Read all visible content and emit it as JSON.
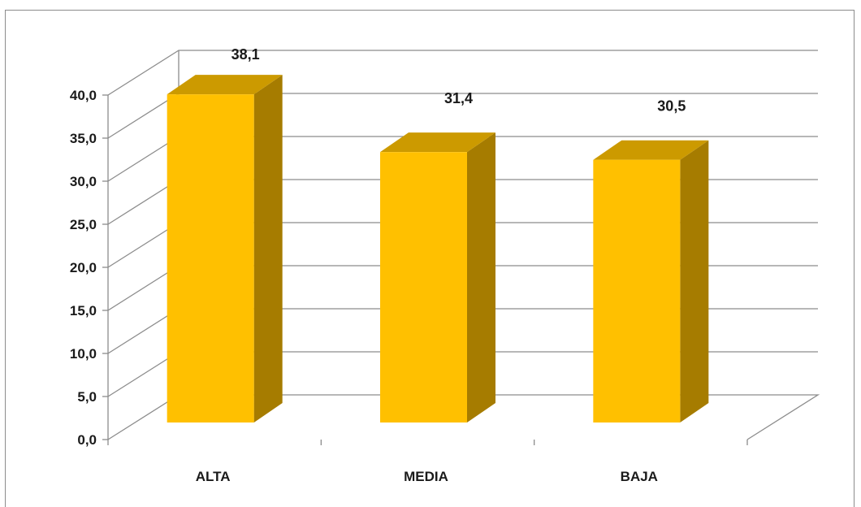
{
  "chart_data": {
    "type": "bar",
    "categories": [
      "ALTA",
      "MEDIA",
      "BAJA"
    ],
    "series": [
      {
        "values": [
          38.1,
          31.4,
          30.5
        ],
        "labels": [
          "38,1",
          "31,4",
          "30,5"
        ]
      }
    ],
    "ylim": [
      0,
      40
    ],
    "yticks": [
      0,
      5,
      10,
      15,
      20,
      25,
      30,
      35,
      40
    ],
    "ytick_labels": [
      "0,0",
      "5,0",
      "10,0",
      "15,0",
      "20,0",
      "25,0",
      "30,0",
      "35,0",
      "40,0"
    ],
    "title": "",
    "xlabel": "",
    "ylabel": "",
    "grid": true,
    "style": "3d-column",
    "colors": {
      "front": "#FFC000",
      "top": "#CC9A00",
      "side": "#A67C00",
      "grid": "#8c8c8c"
    }
  }
}
